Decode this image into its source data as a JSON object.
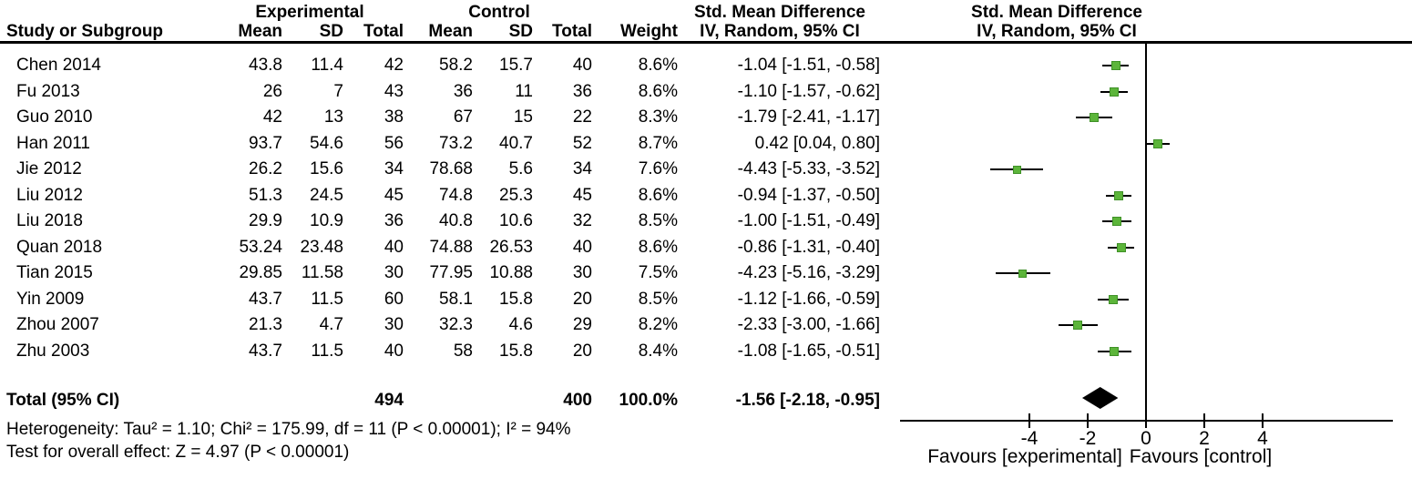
{
  "header": {
    "group_experimental": "Experimental",
    "group_control": "Control",
    "smd_title": "Std. Mean Difference",
    "smd_subtitle": "IV, Random, 95% CI",
    "col_study": "Study or Subgroup",
    "col_mean": "Mean",
    "col_sd": "SD",
    "col_total": "Total",
    "col_weight": "Weight"
  },
  "total_row": {
    "label": "Total (95% CI)",
    "exp_total": "494",
    "ctl_total": "400",
    "weight_label": "100.0%",
    "ci_label": "-1.56 [-2.18, -0.95]"
  },
  "footnotes": {
    "heterogeneity": "Heterogeneity: Tau² = 1.10; Chi² = 175.99, df = 11 (P < 0.00001); I² = 94%",
    "overall_effect": "Test for overall effect: Z = 4.97 (P < 0.00001)"
  },
  "axis": {
    "tick_labels": [
      "-4",
      "-2",
      "0",
      "2",
      "4"
    ],
    "ticks": [
      -4,
      -2,
      0,
      2,
      4
    ],
    "favours_left": "Favours [experimental]",
    "favours_right": "Favours [control]"
  },
  "colors": {
    "marker_fill": "#5cb53a",
    "marker_border": "#3f9127",
    "line": "#000000",
    "diamond": "#000000",
    "text": "#000000"
  },
  "chart_data": {
    "type": "forest",
    "effect_measure": "Std. Mean Difference",
    "model": "IV, Random, 95% CI",
    "x_ticks": [
      -4,
      -2,
      0,
      2,
      4
    ],
    "x_range": [
      -8.5,
      8.5
    ],
    "favours": [
      "Favours [experimental]",
      "Favours [control]"
    ],
    "studies": [
      {
        "name": "Chen 2014",
        "exp_mean": "43.8",
        "exp_sd": "11.4",
        "exp_total": "42",
        "ctl_mean": "58.2",
        "ctl_sd": "15.7",
        "ctl_total": "40",
        "weight_label": "8.6%",
        "weight": 8.6,
        "ci_label": "-1.04 [-1.51, -0.58]",
        "est": -1.04,
        "lo": -1.51,
        "hi": -0.58
      },
      {
        "name": "Fu 2013",
        "exp_mean": "26",
        "exp_sd": "7",
        "exp_total": "43",
        "ctl_mean": "36",
        "ctl_sd": "11",
        "ctl_total": "36",
        "weight_label": "8.6%",
        "weight": 8.6,
        "ci_label": "-1.10 [-1.57, -0.62]",
        "est": -1.1,
        "lo": -1.57,
        "hi": -0.62
      },
      {
        "name": "Guo 2010",
        "exp_mean": "42",
        "exp_sd": "13",
        "exp_total": "38",
        "ctl_mean": "67",
        "ctl_sd": "15",
        "ctl_total": "22",
        "weight_label": "8.3%",
        "weight": 8.3,
        "ci_label": "-1.79 [-2.41, -1.17]",
        "est": -1.79,
        "lo": -2.41,
        "hi": -1.17
      },
      {
        "name": "Han 2011",
        "exp_mean": "93.7",
        "exp_sd": "54.6",
        "exp_total": "56",
        "ctl_mean": "73.2",
        "ctl_sd": "40.7",
        "ctl_total": "52",
        "weight_label": "8.7%",
        "weight": 8.7,
        "ci_label": "0.42 [0.04, 0.80]",
        "est": 0.42,
        "lo": 0.04,
        "hi": 0.8
      },
      {
        "name": "Jie 2012",
        "exp_mean": "26.2",
        "exp_sd": "15.6",
        "exp_total": "34",
        "ctl_mean": "78.68",
        "ctl_sd": "5.6",
        "ctl_total": "34",
        "weight_label": "7.6%",
        "weight": 7.6,
        "ci_label": "-4.43 [-5.33, -3.52]",
        "est": -4.43,
        "lo": -5.33,
        "hi": -3.52
      },
      {
        "name": "Liu 2012",
        "exp_mean": "51.3",
        "exp_sd": "24.5",
        "exp_total": "45",
        "ctl_mean": "74.8",
        "ctl_sd": "25.3",
        "ctl_total": "45",
        "weight_label": "8.6%",
        "weight": 8.6,
        "ci_label": "-0.94 [-1.37, -0.50]",
        "est": -0.94,
        "lo": -1.37,
        "hi": -0.5
      },
      {
        "name": "Liu 2018",
        "exp_mean": "29.9",
        "exp_sd": "10.9",
        "exp_total": "36",
        "ctl_mean": "40.8",
        "ctl_sd": "10.6",
        "ctl_total": "32",
        "weight_label": "8.5%",
        "weight": 8.5,
        "ci_label": "-1.00 [-1.51, -0.49]",
        "est": -1.0,
        "lo": -1.51,
        "hi": -0.49
      },
      {
        "name": "Quan 2018",
        "exp_mean": "53.24",
        "exp_sd": "23.48",
        "exp_total": "40",
        "ctl_mean": "74.88",
        "ctl_sd": "26.53",
        "ctl_total": "40",
        "weight_label": "8.6%",
        "weight": 8.6,
        "ci_label": "-0.86 [-1.31, -0.40]",
        "est": -0.86,
        "lo": -1.31,
        "hi": -0.4
      },
      {
        "name": "Tian 2015",
        "exp_mean": "29.85",
        "exp_sd": "11.58",
        "exp_total": "30",
        "ctl_mean": "77.95",
        "ctl_sd": "10.88",
        "ctl_total": "30",
        "weight_label": "7.5%",
        "weight": 7.5,
        "ci_label": "-4.23 [-5.16, -3.29]",
        "est": -4.23,
        "lo": -5.16,
        "hi": -3.29
      },
      {
        "name": "Yin 2009",
        "exp_mean": "43.7",
        "exp_sd": "11.5",
        "exp_total": "60",
        "ctl_mean": "58.1",
        "ctl_sd": "15.8",
        "ctl_total": "20",
        "weight_label": "8.5%",
        "weight": 8.5,
        "ci_label": "-1.12 [-1.66, -0.59]",
        "est": -1.12,
        "lo": -1.66,
        "hi": -0.59
      },
      {
        "name": "Zhou 2007",
        "exp_mean": "21.3",
        "exp_sd": "4.7",
        "exp_total": "30",
        "ctl_mean": "32.3",
        "ctl_sd": "4.6",
        "ctl_total": "29",
        "weight_label": "8.2%",
        "weight": 8.2,
        "ci_label": "-2.33 [-3.00, -1.66]",
        "est": -2.33,
        "lo": -3.0,
        "hi": -1.66
      },
      {
        "name": "Zhu 2003",
        "exp_mean": "43.7",
        "exp_sd": "11.5",
        "exp_total": "40",
        "ctl_mean": "58",
        "ctl_sd": "15.8",
        "ctl_total": "20",
        "weight_label": "8.4%",
        "weight": 8.4,
        "ci_label": "-1.08 [-1.65, -0.51]",
        "est": -1.08,
        "lo": -1.65,
        "hi": -0.51
      }
    ],
    "total": {
      "label": "Total (95% CI)",
      "exp_total": 494,
      "ctl_total": 400,
      "weight": 100.0,
      "est": -1.56,
      "lo": -2.18,
      "hi": -0.95
    },
    "heterogeneity": "Heterogeneity: Tau² = 1.10; Chi² = 175.99, df = 11 (P < 0.00001); I² = 94%",
    "overall_effect": "Test for overall effect: Z = 4.97 (P < 0.00001)"
  }
}
